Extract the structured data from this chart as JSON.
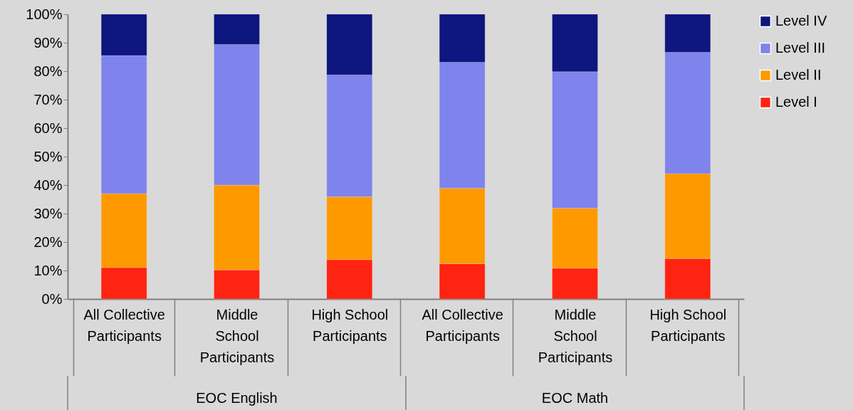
{
  "chart_data": {
    "type": "bar",
    "stacked": true,
    "categories": [
      "All Collective\nParticipants",
      "Middle\nSchool\nParticipants",
      "High School\nParticipants",
      "All Collective\nParticipants",
      "Middle\nSchool\nParticipants",
      "High School\nParticipants"
    ],
    "series": [
      {
        "name": "Level I",
        "color": "#ff2311",
        "values": [
          11.0,
          10.2,
          13.8,
          12.4,
          10.8,
          14.2
        ]
      },
      {
        "name": "Level II",
        "color": "#ff9900",
        "values": [
          26.0,
          29.8,
          22.1,
          26.5,
          21.1,
          29.8
        ]
      },
      {
        "name": "Level III",
        "color": "#7f83ec",
        "values": [
          48.5,
          49.4,
          42.8,
          44.2,
          47.9,
          42.6
        ]
      },
      {
        "name": "Level IV",
        "color": "#0e167f",
        "values": [
          14.5,
          10.6,
          21.3,
          16.9,
          20.2,
          13.4
        ]
      }
    ],
    "ylim": [
      0,
      100
    ],
    "yticks": [
      {
        "value": 0,
        "label": "0%"
      },
      {
        "value": 10,
        "label": "10%"
      },
      {
        "value": 20,
        "label": "20%"
      },
      {
        "value": 30,
        "label": "30%"
      },
      {
        "value": 40,
        "label": "40%"
      },
      {
        "value": 50,
        "label": "50%"
      },
      {
        "value": 60,
        "label": "60%"
      },
      {
        "value": 70,
        "label": "70%"
      },
      {
        "value": 80,
        "label": "80%"
      },
      {
        "value": 90,
        "label": "90%"
      },
      {
        "value": 100,
        "label": "100%"
      }
    ],
    "annotations": [
      "EOC English",
      "EOC Math"
    ],
    "legend": "right"
  }
}
